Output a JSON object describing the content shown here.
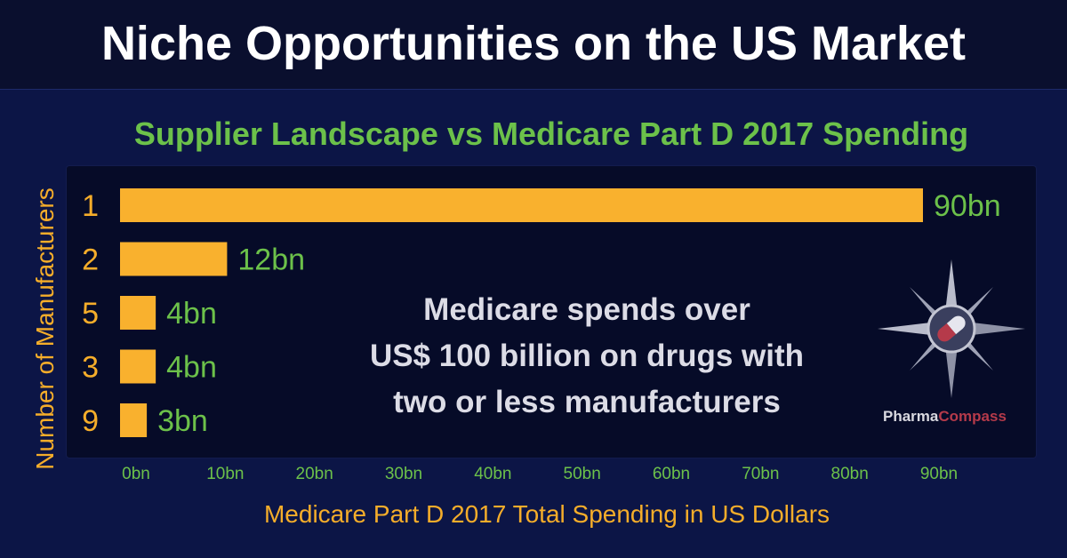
{
  "title": "Niche Opportunities on the US Market",
  "colors": {
    "background": "#0c1546",
    "title_bar": "#0a0f2e",
    "panel": "#060b28",
    "bar": "#f9b12e",
    "value_label": "#6cc14a",
    "category_label": "#f5ad2a",
    "tick_label": "#6cc14a",
    "annotation": "#dcdce6"
  },
  "chart_data": {
    "type": "bar",
    "orientation": "horizontal",
    "title": "Supplier Landscape vs Medicare Part D 2017 Spending",
    "xlabel": "Medicare Part D 2017 Total Spending in US Dollars",
    "ylabel": "Number of Manufacturers",
    "categories": [
      "1",
      "2",
      "5",
      "3",
      "9"
    ],
    "values": [
      90,
      12,
      4,
      4,
      3
    ],
    "value_labels": [
      "90bn",
      "12bn",
      "4bn",
      "4bn",
      "3bn"
    ],
    "xlim": [
      0,
      90
    ],
    "x_ticks": [
      0,
      10,
      20,
      30,
      40,
      50,
      60,
      70,
      80,
      90
    ],
    "x_tick_labels": [
      "0bn",
      "10bn",
      "20bn",
      "30bn",
      "40bn",
      "50bn",
      "60bn",
      "70bn",
      "80bn",
      "90bn"
    ],
    "grid": false,
    "legend": "none",
    "annotation": [
      "Medicare spends over",
      "US$ 100 billion on drugs with",
      "two or less manufacturers"
    ]
  },
  "logo": {
    "icon": "compass-pill-icon",
    "text_part1": "Pharma",
    "text_part2": "Compass"
  }
}
